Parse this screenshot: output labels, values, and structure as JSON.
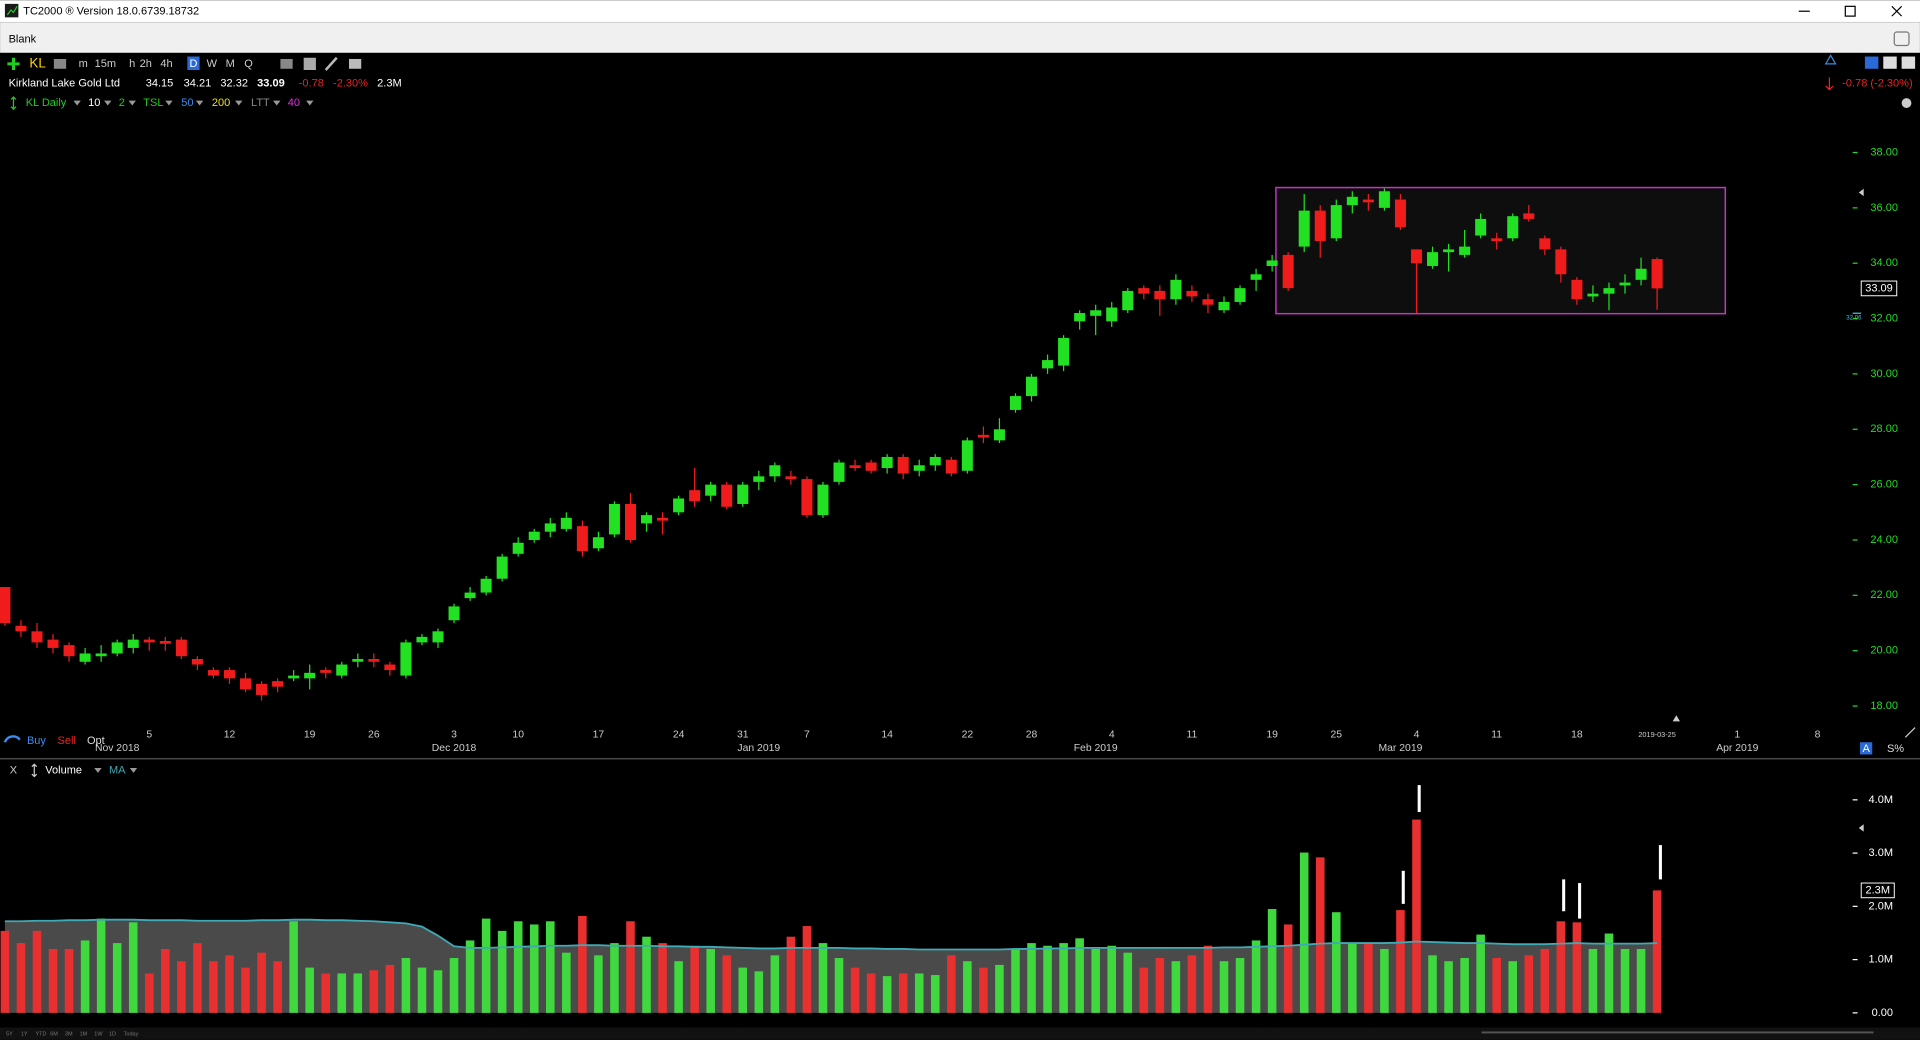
{
  "window": {
    "title": "TC2000 ® Version 18.0.6739.18732"
  },
  "tab": "Blank",
  "toolbar": {
    "symbol": "KL",
    "timeframes": [
      "m",
      "15m",
      "h",
      "2h",
      "4h",
      "D",
      "W",
      "M",
      "Q"
    ]
  },
  "quote": {
    "name": "Kirkland Lake Gold Ltd",
    "open": "34.15",
    "high": "34.21",
    "low": "32.32",
    "last": "33.09",
    "change": "-0.78",
    "change_pct": "-2.30%",
    "volume": "2.3M",
    "change_summary": "-0.78 (-2.30%)"
  },
  "indicators": {
    "chart": "KL Daily",
    "period": "10",
    "bands": "2",
    "tsl": "TSL",
    "ma_fast": "50",
    "ma_slow": "200",
    "ltt": "LTT",
    "ltt_period": "40"
  },
  "trade_buttons": [
    "Buy",
    "Sell",
    "Opt"
  ],
  "volume_panel": {
    "close": "X"
  },
  "scale_buttons": [
    "A",
    "S%"
  ],
  "ranges": [
    "5Y",
    "1Y",
    "YTD",
    "6M",
    "3M",
    "1M",
    "1W",
    "1D",
    "Today"
  ],
  "chart_data": [
    {
      "type": "candlestick",
      "categories": [
        null,
        null,
        null,
        null,
        null,
        null,
        null,
        null,
        null,
        "5",
        null,
        null,
        null,
        null,
        "12",
        null,
        null,
        null,
        null,
        "19",
        null,
        null,
        null,
        "26",
        null,
        null,
        null,
        null,
        "3",
        null,
        null,
        null,
        "10",
        null,
        null,
        null,
        null,
        "17",
        null,
        null,
        null,
        null,
        "24",
        null,
        null,
        null,
        "31",
        null,
        null,
        null,
        "7",
        null,
        null,
        null,
        null,
        "14",
        null,
        null,
        null,
        null,
        "22",
        null,
        null,
        null,
        "28",
        null,
        null,
        null,
        null,
        "4",
        null,
        null,
        null,
        null,
        "11",
        null,
        null,
        null,
        null,
        "19",
        null,
        null,
        null,
        "25",
        null,
        null,
        null,
        null,
        "4",
        null,
        null,
        null,
        null,
        "11",
        null,
        null,
        null,
        null,
        "18",
        null,
        null,
        null,
        null,
        "2019-03-25",
        null,
        null,
        null,
        null,
        "1",
        null,
        null,
        null,
        null,
        "8",
        null,
        null
      ],
      "category_months": [
        null,
        null,
        null,
        null,
        null,
        null,
        null,
        "Nov 2018",
        null,
        null,
        null,
        null,
        null,
        null,
        null,
        null,
        null,
        null,
        null,
        null,
        null,
        null,
        null,
        null,
        null,
        null,
        null,
        null,
        "Dec 2018",
        null,
        null,
        null,
        null,
        null,
        null,
        null,
        null,
        null,
        null,
        null,
        null,
        null,
        null,
        null,
        null,
        null,
        null,
        "Jan 2019",
        null,
        null,
        null,
        null,
        null,
        null,
        null,
        null,
        null,
        null,
        null,
        null,
        null,
        null,
        null,
        null,
        null,
        null,
        null,
        null,
        "Feb 2019",
        null,
        null,
        null,
        null,
        null,
        null,
        null,
        null,
        null,
        null,
        null,
        null,
        null,
        null,
        null,
        null,
        null,
        null,
        "Mar 2019",
        null,
        null,
        null,
        null,
        null,
        null,
        null,
        null,
        null,
        null,
        null,
        null,
        null,
        null,
        null,
        null,
        null,
        null,
        null,
        null,
        "Apr 2019",
        null,
        null,
        null,
        null,
        null,
        null,
        null
      ],
      "open": [
        22.3,
        20.9,
        20.7,
        20.4,
        20.2,
        19.6,
        19.8,
        19.9,
        20.1,
        20.4,
        20.35,
        20.4,
        19.7,
        19.3,
        19.3,
        19.0,
        18.8,
        18.9,
        19.0,
        19.0,
        19.3,
        19.1,
        19.6,
        19.7,
        19.5,
        19.1,
        20.3,
        20.3,
        21.1,
        21.9,
        22.1,
        22.6,
        23.5,
        24.0,
        24.3,
        24.4,
        24.5,
        23.7,
        24.2,
        25.3,
        24.6,
        24.8,
        25.0,
        25.8,
        25.6,
        26.0,
        25.3,
        26.1,
        26.3,
        26.3,
        26.2,
        24.9,
        26.1,
        26.7,
        26.8,
        26.6,
        27.0,
        26.5,
        26.7,
        26.9,
        26.5,
        27.8,
        27.6,
        28.7,
        29.2,
        30.2,
        30.3,
        31.9,
        32.1,
        31.9,
        32.3,
        33.1,
        33.0,
        32.7,
        33.0,
        32.7,
        32.3,
        32.6,
        33.4,
        33.9,
        34.3,
        34.6,
        35.9,
        34.9,
        36.1,
        36.3,
        36.0,
        36.3,
        34.5,
        33.9,
        34.4,
        34.3,
        35.0,
        34.9,
        34.9,
        35.8,
        34.9,
        34.5,
        33.4,
        32.8,
        32.9,
        33.2,
        33.4,
        34.15,
        null,
        null,
        null,
        null,
        null,
        null,
        null,
        null,
        null,
        null,
        null,
        null
      ],
      "high": [
        22.3,
        21.1,
        21.0,
        20.6,
        20.3,
        20.1,
        20.2,
        20.4,
        20.6,
        20.5,
        20.5,
        20.5,
        19.8,
        19.4,
        19.4,
        19.2,
        18.9,
        19.0,
        19.3,
        19.5,
        19.4,
        19.6,
        19.9,
        19.9,
        19.6,
        20.4,
        20.6,
        20.8,
        21.7,
        22.3,
        22.7,
        23.5,
        24.1,
        24.4,
        24.8,
        25.0,
        24.7,
        24.3,
        25.4,
        25.7,
        25.0,
        25.0,
        25.6,
        26.6,
        26.1,
        26.1,
        26.1,
        26.5,
        26.8,
        26.5,
        26.3,
        26.1,
        26.9,
        26.9,
        26.9,
        27.1,
        27.1,
        26.9,
        27.1,
        27.0,
        27.7,
        28.1,
        28.4,
        29.3,
        30.0,
        30.7,
        31.4,
        32.3,
        32.5,
        32.6,
        33.1,
        33.2,
        33.2,
        33.6,
        33.2,
        32.9,
        32.8,
        33.2,
        33.8,
        34.3,
        34.4,
        36.5,
        36.1,
        36.3,
        36.6,
        36.5,
        36.7,
        36.5,
        34.5,
        34.6,
        34.7,
        35.2,
        35.8,
        35.1,
        35.8,
        36.1,
        35.0,
        34.6,
        33.5,
        33.2,
        33.3,
        33.6,
        34.2,
        34.21,
        null,
        null,
        null,
        null,
        null,
        null,
        null,
        null,
        null,
        null,
        null,
        null
      ],
      "low": [
        20.9,
        20.5,
        20.1,
        19.9,
        19.6,
        19.5,
        19.6,
        19.8,
        19.9,
        20.0,
        20.0,
        19.7,
        19.3,
        19.0,
        18.8,
        18.5,
        18.2,
        18.5,
        18.9,
        18.6,
        19.0,
        19.0,
        19.4,
        19.4,
        19.1,
        19.0,
        20.2,
        20.1,
        21.0,
        21.8,
        22.0,
        22.5,
        23.4,
        23.9,
        24.1,
        24.3,
        23.4,
        23.6,
        24.1,
        23.9,
        24.3,
        24.2,
        24.9,
        25.2,
        25.4,
        25.1,
        25.2,
        25.8,
        26.1,
        26.0,
        24.8,
        24.8,
        26.0,
        26.5,
        26.4,
        26.4,
        26.2,
        26.3,
        26.5,
        26.3,
        26.4,
        27.5,
        27.5,
        28.6,
        29.0,
        30.0,
        30.1,
        31.6,
        31.4,
        31.7,
        32.2,
        32.7,
        32.1,
        32.5,
        32.6,
        32.2,
        32.2,
        32.5,
        33.0,
        33.7,
        33.0,
        34.4,
        34.2,
        34.8,
        35.8,
        35.9,
        35.9,
        35.2,
        32.2,
        33.8,
        33.7,
        34.2,
        34.9,
        34.5,
        34.8,
        35.5,
        34.3,
        33.3,
        32.5,
        32.6,
        32.3,
        32.9,
        33.2,
        32.32,
        null,
        null,
        null,
        null,
        null,
        null,
        null,
        null,
        null,
        null,
        null,
        null
      ],
      "close": [
        21.0,
        20.7,
        20.3,
        20.1,
        19.8,
        19.9,
        19.9,
        20.3,
        20.4,
        20.3,
        20.25,
        19.8,
        19.5,
        19.1,
        19.0,
        18.6,
        18.4,
        18.7,
        19.1,
        19.2,
        19.2,
        19.5,
        19.7,
        19.6,
        19.3,
        20.3,
        20.5,
        20.7,
        21.6,
        22.1,
        22.6,
        23.4,
        23.9,
        24.3,
        24.6,
        24.8,
        23.6,
        24.1,
        25.3,
        24.0,
        24.9,
        24.7,
        25.5,
        25.4,
        26.0,
        25.2,
        26.0,
        26.3,
        26.7,
        26.2,
        24.9,
        26.0,
        26.8,
        26.6,
        26.5,
        27.0,
        26.4,
        26.7,
        27.0,
        26.4,
        27.6,
        27.7,
        28.0,
        29.2,
        29.9,
        30.5,
        31.3,
        32.2,
        32.3,
        32.4,
        33.0,
        32.9,
        32.7,
        33.4,
        32.8,
        32.5,
        32.6,
        33.1,
        33.6,
        34.1,
        33.1,
        35.9,
        34.8,
        36.1,
        36.4,
        36.2,
        36.6,
        35.3,
        34.0,
        34.4,
        34.5,
        34.6,
        35.6,
        34.8,
        35.7,
        35.6,
        34.5,
        33.6,
        32.7,
        32.9,
        33.1,
        33.3,
        33.8,
        33.09,
        null,
        null,
        null,
        null,
        null,
        null,
        null,
        null,
        null,
        null,
        null,
        null
      ],
      "up_color": "#22e022",
      "down_color": "#f01c1c",
      "ylim": [
        17.4,
        39.3
      ],
      "yticks": [
        {
          "value": 18,
          "label": "18.00"
        },
        {
          "value": 20,
          "label": "20.00"
        },
        {
          "value": 22,
          "label": "22.00"
        },
        {
          "value": 24,
          "label": "24.00"
        },
        {
          "value": 26,
          "label": "26.00"
        },
        {
          "value": 28,
          "label": "28.00"
        },
        {
          "value": 30,
          "label": "30.00"
        },
        {
          "value": 32,
          "label": "32.00"
        },
        {
          "value": 34,
          "label": "34.00"
        },
        {
          "value": 36,
          "label": "36.00"
        },
        {
          "value": 38,
          "label": "38.00"
        }
      ],
      "axis_color": "#22dd22",
      "last": 33.09,
      "marker": 32.06
    },
    {
      "type": "bar",
      "series": [
        {
          "name": "Volume",
          "values": [
            1.54,
            1.31,
            1.54,
            1.2,
            1.2,
            1.36,
            1.77,
            1.31,
            1.7,
            0.74,
            1.2,
            0.97,
            1.31,
            0.97,
            1.08,
            0.85,
            1.13,
            0.97,
            1.72,
            0.85,
            0.74,
            0.74,
            0.74,
            0.8,
            0.9,
            1.03,
            0.85,
            0.8,
            1.03,
            1.36,
            1.77,
            1.54,
            1.72,
            1.66,
            1.72,
            1.13,
            1.82,
            1.08,
            1.31,
            1.72,
            1.43,
            1.31,
            0.97,
            1.26,
            1.2,
            1.08,
            0.85,
            0.78,
            1.08,
            1.43,
            1.63,
            1.31,
            1.03,
            0.85,
            0.74,
            0.69,
            0.74,
            0.74,
            0.71,
            1.08,
            0.97,
            0.85,
            0.9,
            1.2,
            1.31,
            1.26,
            1.31,
            1.4,
            1.2,
            1.26,
            1.13,
            0.85,
            1.03,
            0.97,
            1.08,
            1.26,
            0.97,
            1.03,
            1.36,
            1.95,
            1.66,
            3.01,
            2.92,
            1.89,
            1.31,
            1.31,
            1.2,
            1.93,
            3.63,
            1.08,
            0.97,
            1.03,
            1.47,
            1.03,
            0.97,
            1.08,
            1.2,
            1.72,
            1.7,
            1.2,
            1.49,
            1.2,
            1.2,
            2.3,
            null,
            null,
            null,
            null,
            null,
            null,
            null,
            null,
            null,
            null,
            null,
            null
          ]
        },
        {
          "name": "MA",
          "color": "#3fa9b5",
          "values": [
            1.72,
            1.72,
            1.73,
            1.73,
            1.74,
            1.74,
            1.75,
            1.75,
            1.75,
            1.74,
            1.74,
            1.74,
            1.73,
            1.73,
            1.73,
            1.73,
            1.74,
            1.74,
            1.75,
            1.75,
            1.74,
            1.74,
            1.73,
            1.72,
            1.7,
            1.68,
            1.62,
            1.45,
            1.25,
            1.22,
            1.22,
            1.23,
            1.24,
            1.25,
            1.26,
            1.26,
            1.27,
            1.27,
            1.26,
            1.26,
            1.26,
            1.25,
            1.25,
            1.24,
            1.24,
            1.23,
            1.22,
            1.21,
            1.21,
            1.22,
            1.22,
            1.22,
            1.22,
            1.21,
            1.21,
            1.2,
            1.2,
            1.19,
            1.19,
            1.19,
            1.19,
            1.19,
            1.19,
            1.2,
            1.2,
            1.21,
            1.21,
            1.22,
            1.22,
            1.22,
            1.22,
            1.22,
            1.22,
            1.22,
            1.22,
            1.22,
            1.23,
            1.23,
            1.24,
            1.25,
            1.26,
            1.28,
            1.3,
            1.31,
            1.31,
            1.31,
            1.31,
            1.32,
            1.34,
            1.33,
            1.32,
            1.31,
            1.31,
            1.3,
            1.29,
            1.29,
            1.29,
            1.3,
            1.31,
            1.3,
            1.3,
            1.3,
            1.3,
            1.31,
            null,
            null,
            null,
            null,
            null,
            null,
            null,
            null,
            null,
            null,
            null,
            null
          ]
        }
      ],
      "up_color": "#3fd83f",
      "down_color": "#e83030",
      "area_color": "#4a4a4a",
      "ylim": [
        0,
        4.3
      ],
      "yticks": [
        {
          "value": 0,
          "label": "0.00"
        },
        {
          "value": 1,
          "label": "1.0M"
        },
        {
          "value": 2,
          "label": "2.0M"
        },
        {
          "value": 3,
          "label": "3.0M"
        },
        {
          "value": 4,
          "label": "4.0M"
        }
      ],
      "last": {
        "value": 2.3,
        "label": "2.3M"
      }
    }
  ]
}
